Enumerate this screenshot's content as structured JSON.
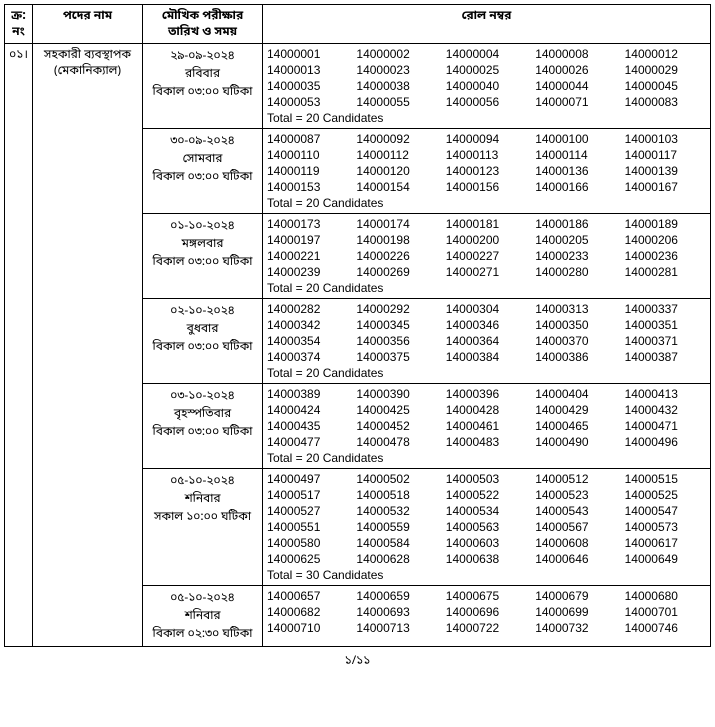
{
  "headers": {
    "sl": "ক্র:\nনং",
    "post": "পদের নাম",
    "date": "মৌখিক পরীক্ষার\nতারিখ ও সময়",
    "rolls": "রোল নম্বর"
  },
  "sl": "০১।",
  "post_name": "সহকারী ব্যবস্থাপক\n(মেকানিক্যাল)",
  "total_prefix": "Total = ",
  "total_suffix": " Candidates",
  "footer": "১/১১",
  "slots": [
    {
      "date_lines": [
        "২৯-০৯-২০২৪",
        "রবিবার",
        "বিকাল ০৩:০০ ঘটিকা"
      ],
      "rolls": [
        "14000001",
        "14000002",
        "14000004",
        "14000008",
        "14000012",
        "14000013",
        "14000023",
        "14000025",
        "14000026",
        "14000029",
        "14000035",
        "14000038",
        "14000040",
        "14000044",
        "14000045",
        "14000053",
        "14000055",
        "14000056",
        "14000071",
        "14000083"
      ],
      "count": 20
    },
    {
      "date_lines": [
        "৩০-০৯-২০২৪",
        "সোমবার",
        "বিকাল ০৩:০০ ঘটিকা"
      ],
      "rolls": [
        "14000087",
        "14000092",
        "14000094",
        "14000100",
        "14000103",
        "14000110",
        "14000112",
        "14000113",
        "14000114",
        "14000117",
        "14000119",
        "14000120",
        "14000123",
        "14000136",
        "14000139",
        "14000153",
        "14000154",
        "14000156",
        "14000166",
        "14000167"
      ],
      "count": 20
    },
    {
      "date_lines": [
        "০১-১০-২০২৪",
        "মঙ্গলবার",
        "বিকাল ০৩:০০ ঘটিকা"
      ],
      "rolls": [
        "14000173",
        "14000174",
        "14000181",
        "14000186",
        "14000189",
        "14000197",
        "14000198",
        "14000200",
        "14000205",
        "14000206",
        "14000221",
        "14000226",
        "14000227",
        "14000233",
        "14000236",
        "14000239",
        "14000269",
        "14000271",
        "14000280",
        "14000281"
      ],
      "count": 20
    },
    {
      "date_lines": [
        "০২-১০-২০২৪",
        "বুধবার",
        "বিকাল ০৩:০০ ঘটিকা"
      ],
      "rolls": [
        "14000282",
        "14000292",
        "14000304",
        "14000313",
        "14000337",
        "14000342",
        "14000345",
        "14000346",
        "14000350",
        "14000351",
        "14000354",
        "14000356",
        "14000364",
        "14000370",
        "14000371",
        "14000374",
        "14000375",
        "14000384",
        "14000386",
        "14000387"
      ],
      "count": 20
    },
    {
      "date_lines": [
        "০৩-১০-২০২৪",
        "বৃহস্পতিবার",
        "বিকাল ০৩:০০ ঘটিকা"
      ],
      "rolls": [
        "14000389",
        "14000390",
        "14000396",
        "14000404",
        "14000413",
        "14000424",
        "14000425",
        "14000428",
        "14000429",
        "14000432",
        "14000435",
        "14000452",
        "14000461",
        "14000465",
        "14000471",
        "14000477",
        "14000478",
        "14000483",
        "14000490",
        "14000496"
      ],
      "count": 20
    },
    {
      "date_lines": [
        "০৫-১০-২০২৪",
        "শনিবার",
        "সকাল ১০:০০ ঘটিকা"
      ],
      "rolls": [
        "14000497",
        "14000502",
        "14000503",
        "14000512",
        "14000515",
        "14000517",
        "14000518",
        "14000522",
        "14000523",
        "14000525",
        "14000527",
        "14000532",
        "14000534",
        "14000543",
        "14000547",
        "14000551",
        "14000559",
        "14000563",
        "14000567",
        "14000573",
        "14000580",
        "14000584",
        "14000603",
        "14000608",
        "14000617",
        "14000625",
        "14000628",
        "14000638",
        "14000646",
        "14000649"
      ],
      "count": 30
    },
    {
      "date_lines": [
        "০৫-১০-২০২৪",
        "শনিবার",
        "বিকাল ০২:৩০ ঘটিকা"
      ],
      "rolls": [
        "14000657",
        "14000659",
        "14000675",
        "14000679",
        "14000680",
        "14000682",
        "14000693",
        "14000696",
        "14000699",
        "14000701",
        "14000710",
        "14000713",
        "14000722",
        "14000732",
        "14000746"
      ],
      "count": null
    }
  ]
}
